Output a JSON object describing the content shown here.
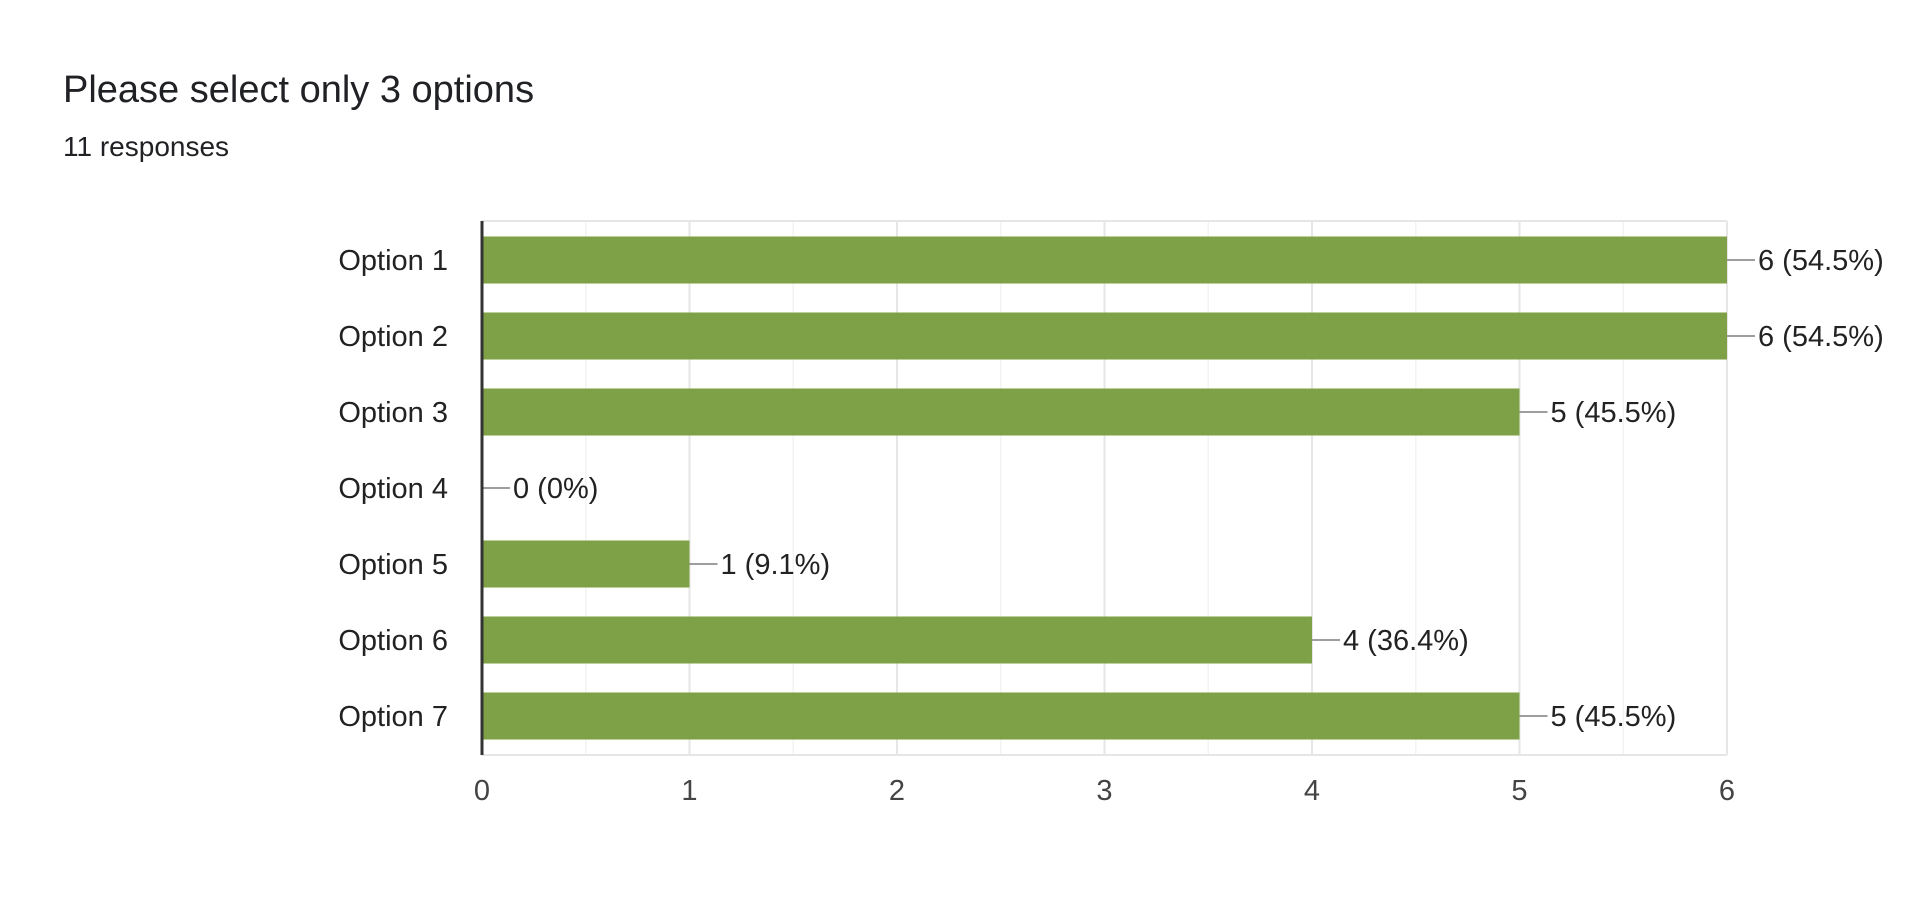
{
  "header": {
    "title": "Please select only 3 options",
    "responses": "11 responses"
  },
  "colors": {
    "bar": "#7ea046",
    "grid_major": "#e6e6e6",
    "grid_minor": "#f3f3f3",
    "axis": "#333333",
    "leader": "#9e9e9e"
  },
  "chart_data": {
    "type": "bar",
    "orientation": "horizontal",
    "title": "",
    "xlabel": "",
    "ylabel": "",
    "categories": [
      "Option 1",
      "Option 2",
      "Option 3",
      "Option 4",
      "Option 5",
      "Option 6",
      "Option 7"
    ],
    "values": [
      6,
      6,
      5,
      0,
      1,
      4,
      5
    ],
    "data_labels": [
      "6 (54.5%)",
      "6 (54.5%)",
      "5 (45.5%)",
      "0 (0%)",
      "1 (9.1%)",
      "4 (36.4%)",
      "5 (45.5%)"
    ],
    "xlim": [
      0,
      6
    ],
    "xticks": [
      "0",
      "1",
      "2",
      "3",
      "4",
      "5",
      "6"
    ],
    "grid": true,
    "legend": "none"
  }
}
